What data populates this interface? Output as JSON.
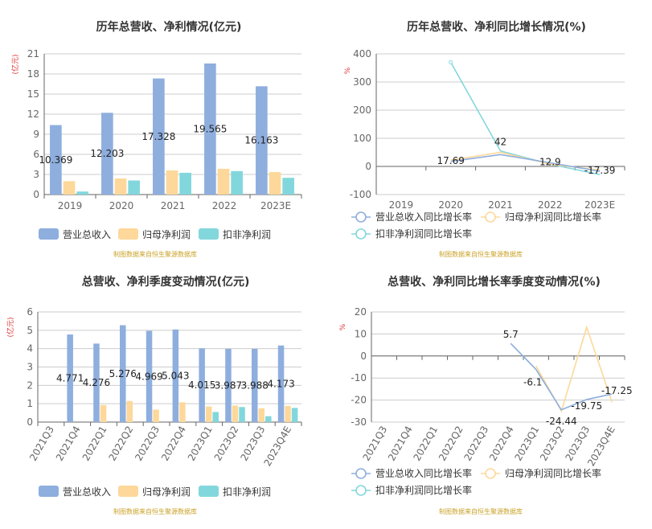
{
  "colors": {
    "revenue": "#8eaede",
    "net_profit": "#fdd89a",
    "deducted": "#82d7dc",
    "axis": "#666666",
    "grid": "#cccccc",
    "unit": "#e03030",
    "source": "#c9a227",
    "title": "#333333"
  },
  "chart_data": [
    {
      "type": "bar",
      "title": "历年总营收、净利情况(亿元)",
      "ylabel": "(亿元)",
      "ylim": [
        0,
        21
      ],
      "yticks": [
        0,
        3,
        6,
        9,
        12,
        15,
        18,
        21
      ],
      "categories": [
        "2019",
        "2020",
        "2021",
        "2022",
        "2023E"
      ],
      "series": [
        {
          "name": "营业总收入",
          "values": [
            10.369,
            12.203,
            17.328,
            19.565,
            16.163
          ],
          "labels": [
            "10.369",
            "12.203",
            "17.328",
            "19.565",
            "16.163"
          ]
        },
        {
          "name": "归母净利润",
          "values": [
            2.0,
            2.4,
            3.6,
            3.85,
            3.35
          ]
        },
        {
          "name": "扣非净利润",
          "values": [
            0.45,
            2.1,
            3.25,
            3.5,
            2.5
          ]
        }
      ],
      "legend": "bottom",
      "source": "制图数据来自恒生聚源数据库"
    },
    {
      "type": "line",
      "title": "历年总营收、净利同比增长情况(%)",
      "ylabel": "%",
      "ylim": [
        -100,
        400
      ],
      "yticks": [
        -100,
        0,
        100,
        200,
        300,
        400
      ],
      "categories": [
        "2019",
        "2020",
        "2021",
        "2022",
        "2023E"
      ],
      "series": [
        {
          "name": "营业总收入同比增长率",
          "values": [
            null,
            17.69,
            42,
            12.9,
            -17.39
          ],
          "labels": [
            "",
            "17.69",
            "42",
            "12.9",
            "-17.39"
          ]
        },
        {
          "name": "归母净利润同比增长率",
          "values": [
            null,
            22,
            50,
            8,
            -13
          ]
        },
        {
          "name": "扣非净利润同比增长率",
          "values": [
            null,
            370,
            55,
            8,
            -29
          ]
        }
      ],
      "legend": "bottom",
      "source": "制图数据来自恒生聚源数据库"
    },
    {
      "type": "bar",
      "title": "总营收、净利季度变动情况(亿元)",
      "ylabel": "(亿元)",
      "ylim": [
        0,
        6
      ],
      "yticks": [
        0,
        1,
        2,
        3,
        4,
        5,
        6
      ],
      "categories": [
        "2021Q3",
        "2021Q4",
        "2022Q1",
        "2022Q2",
        "2022Q3",
        "2022Q4",
        "2023Q1",
        "2023Q2",
        "2023Q3",
        "2023Q4E"
      ],
      "series": [
        {
          "name": "营业总收入",
          "values": [
            null,
            4.771,
            4.276,
            5.276,
            4.969,
            5.043,
            4.015,
            3.987,
            3.988,
            4.173
          ],
          "labels": [
            "",
            "4.771",
            "4.276",
            "5.276",
            "4.969",
            "5.043",
            "4.015",
            "3.987",
            "3.988",
            "4.173"
          ]
        },
        {
          "name": "归母净利润",
          "values": [
            null,
            null,
            0.93,
            1.15,
            0.68,
            1.08,
            0.85,
            0.9,
            0.75,
            0.88
          ]
        },
        {
          "name": "扣非净利润",
          "values": [
            null,
            null,
            null,
            null,
            null,
            null,
            0.55,
            0.82,
            0.32,
            0.77
          ]
        }
      ],
      "legend": "bottom",
      "source": "制图数据来自恒生聚源数据库"
    },
    {
      "type": "line",
      "title": "总营收、净利同比增长率季度变动情况(%)",
      "ylabel": "%",
      "ylim": [
        -30,
        20
      ],
      "yticks": [
        -30,
        -20,
        -10,
        0,
        10,
        20
      ],
      "categories": [
        "2021Q3",
        "2021Q4",
        "2022Q1",
        "2022Q2",
        "2022Q3",
        "2022Q4",
        "2023Q1",
        "2023Q2",
        "2023Q3",
        "2023Q4E"
      ],
      "series": [
        {
          "name": "营业总收入同比增长率",
          "values": [
            null,
            null,
            null,
            null,
            null,
            5.7,
            -6.1,
            -24.44,
            -19.75,
            -17.25
          ],
          "labels": [
            "",
            "",
            "",
            "",
            "",
            "5.7",
            "-6.1",
            "-24.44",
            "-19.75",
            "-17.25"
          ]
        },
        {
          "name": "归母净利润同比增长率",
          "values": [
            null,
            null,
            null,
            null,
            null,
            null,
            -4.5,
            -25.0,
            13.0,
            -21.0
          ]
        },
        {
          "name": "扣非净利润同比增长率",
          "values": [
            null,
            null,
            null,
            null,
            null,
            null,
            null,
            null,
            null,
            null
          ]
        }
      ],
      "legend": "bottom",
      "source": "制图数据来自恒生聚源数据库"
    }
  ]
}
